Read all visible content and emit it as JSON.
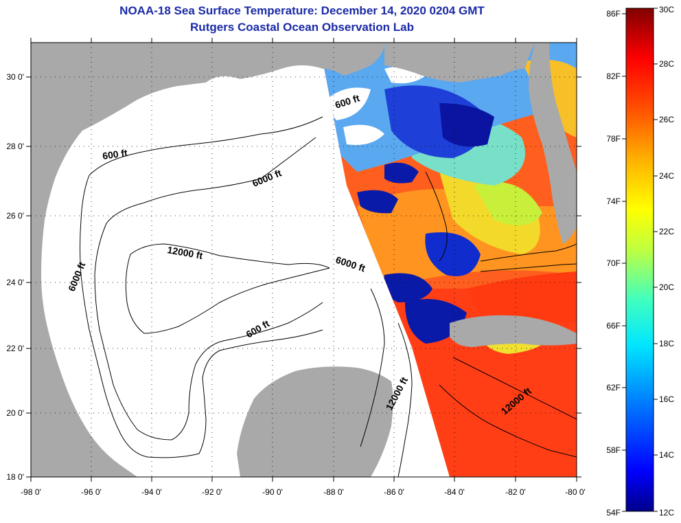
{
  "title": {
    "line1": "NOAA-18 Sea Surface Temperature:  December 14, 2020 0204 GMT",
    "line2": "Rutgers Coastal Ocean Observation Lab"
  },
  "map": {
    "lat_ticks": [
      "30 0'",
      "28 0'",
      "26 0'",
      "24 0'",
      "22 0'",
      "20 0'",
      "18 0'"
    ],
    "lon_ticks": [
      "-98 0'",
      "-96 0'",
      "-94 0'",
      "-92 0'",
      "-90 0'",
      "-88 0'",
      "-86 0'",
      "-84 0'",
      "-82 0'",
      "-80 0'"
    ],
    "contour_labels": [
      "600 ft",
      "600 ft",
      "6000 ft",
      "12000 ft",
      "6000 ft",
      "6000 ft",
      "600 ft",
      "12000 ft",
      "12000 ft"
    ],
    "colors": {
      "land": "#a9a9a9",
      "ocean_nodata": "#ffffff",
      "warm": "#ff5a1e",
      "hot": "#ff3a14",
      "orange": "#ff9a1e",
      "yellow": "#f5e629",
      "cyan": "#20d2f0",
      "blue": "#1a46e6",
      "navy": "#00009a"
    }
  },
  "colorbar": {
    "fahrenheit": [
      "86F",
      "82F",
      "78F",
      "74F",
      "70F",
      "66F",
      "62F",
      "58F",
      "54F"
    ],
    "celsius": [
      "30C",
      "28C",
      "26C",
      "24C",
      "22C",
      "20C",
      "18C",
      "16C",
      "14C",
      "12C"
    ],
    "range_celsius": [
      12,
      30
    ]
  }
}
